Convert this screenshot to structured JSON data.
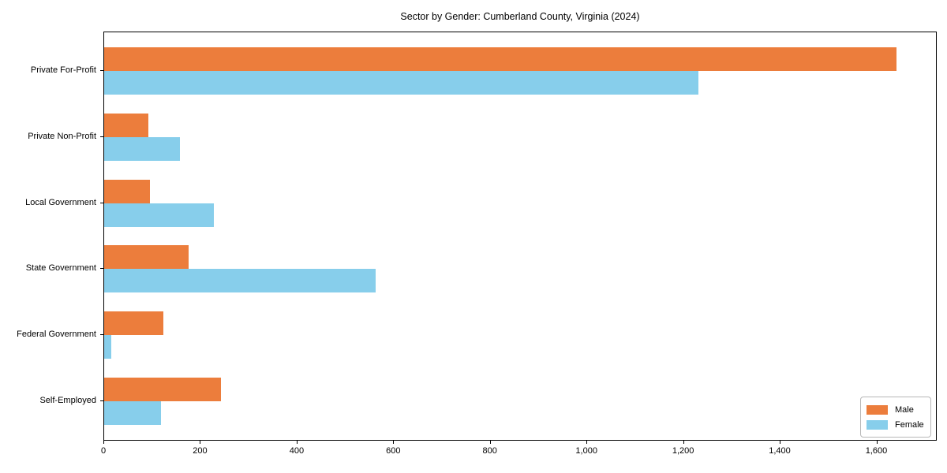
{
  "title": "Sector by Gender: Cumberland County, Virginia (2024)",
  "colors": {
    "male_bar": "#EC7D3C",
    "female_bar": "#87CEEB",
    "axis": "#000000",
    "legend_border": "#b7b7b7"
  },
  "chart_data": {
    "type": "bar",
    "orientation": "horizontal",
    "title": "Sector by Gender: Cumberland County, Virginia (2024)",
    "xlabel": "",
    "ylabel": "",
    "categories": [
      "Private For-Profit",
      "Private Non-Profit",
      "Local Government",
      "State Government",
      "Federal Government",
      "Self-Employed"
    ],
    "series": [
      {
        "name": "Male",
        "color": "#EC7D3C",
        "values": [
          1640,
          92,
          95,
          174,
          123,
          242
        ]
      },
      {
        "name": "Female",
        "color": "#87CEEB",
        "values": [
          1230,
          156,
          227,
          562,
          15,
          117
        ]
      }
    ],
    "xlim": [
      0,
      1725
    ],
    "xticks": [
      0,
      200,
      400,
      600,
      800,
      1000,
      1200,
      1400,
      1600
    ],
    "xtick_labels": [
      "0",
      "200",
      "400",
      "600",
      "800",
      "1,000",
      "1,200",
      "1,400",
      "1,600"
    ],
    "grid": false,
    "legend": {
      "position": "lower right",
      "entries": [
        "Male",
        "Female"
      ]
    }
  }
}
